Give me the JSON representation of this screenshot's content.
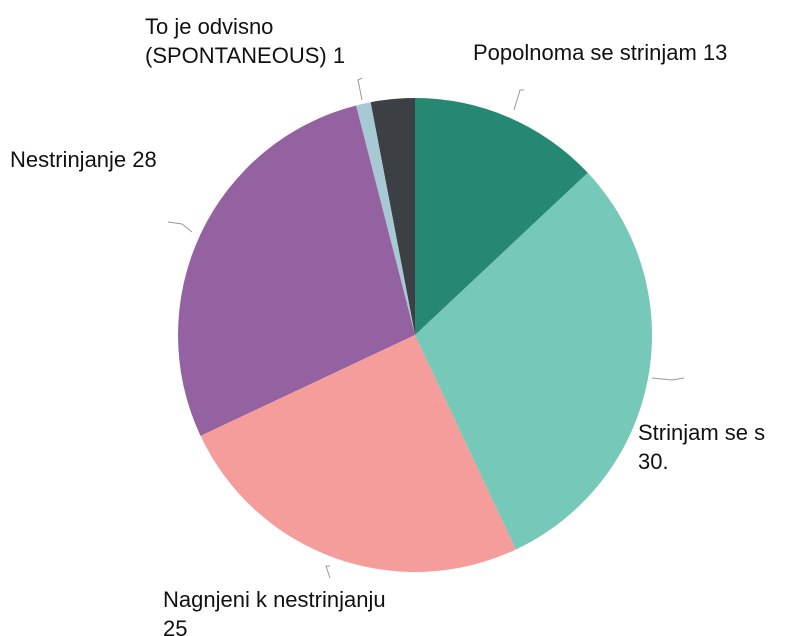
{
  "chart_data": {
    "type": "pie",
    "categories": [
      "Popolnoma se strinjam",
      "Strinjam se s",
      "Nagnjeni k nestrinjanju",
      "Nestrinjanje",
      "To je odvisno (SPONTANEOUS)",
      null
    ],
    "values": [
      13,
      30,
      25,
      28,
      1,
      3
    ],
    "value_labels": [
      "13",
      "30.",
      "25",
      "28",
      "1",
      null
    ],
    "colors": [
      "#268872",
      "#76c8b8",
      "#f59d9a",
      "#9462a0",
      "#a7c9d3",
      "#3c3f44"
    ]
  }
}
